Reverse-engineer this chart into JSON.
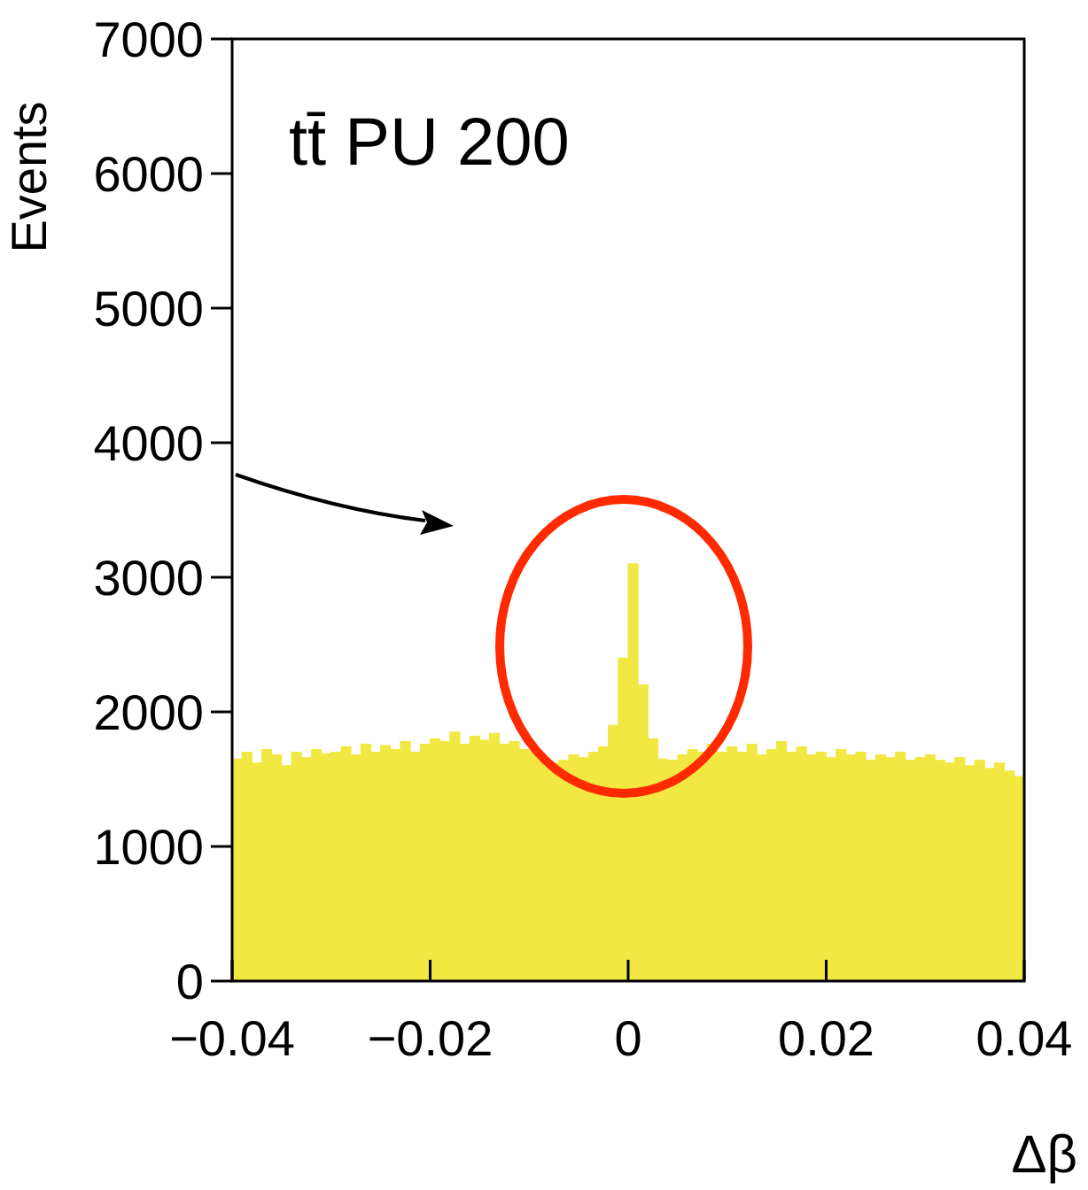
{
  "chart_data": {
    "type": "histogram",
    "title": "tt̄ PU 200",
    "xlabel": "Δβ",
    "ylabel": "Events",
    "bins": [
      -0.04,
      -0.039,
      -0.038,
      -0.037,
      -0.036,
      -0.035,
      -0.034,
      -0.033,
      -0.032,
      -0.031,
      -0.03,
      -0.029,
      -0.028,
      -0.027,
      -0.026,
      -0.025,
      -0.024,
      -0.023,
      -0.022,
      -0.021,
      -0.02,
      -0.019,
      -0.018,
      -0.017,
      -0.016,
      -0.015,
      -0.014,
      -0.013,
      -0.012,
      -0.011,
      -0.01,
      -0.009,
      -0.008,
      -0.007,
      -0.006,
      -0.005,
      -0.004,
      -0.003,
      -0.002,
      -0.001,
      0,
      0.001,
      0.002,
      0.003,
      0.004,
      0.005,
      0.006,
      0.007,
      0.008,
      0.009,
      0.01,
      0.011,
      0.012,
      0.013,
      0.014,
      0.015,
      0.016,
      0.017,
      0.018,
      0.019,
      0.02,
      0.021,
      0.022,
      0.023,
      0.024,
      0.025,
      0.026,
      0.027,
      0.028,
      0.029,
      0.03,
      0.031,
      0.032,
      0.033,
      0.034,
      0.035,
      0.036,
      0.037,
      0.038,
      0.039,
      0.04
    ],
    "values": [
      1650,
      1700,
      1620,
      1720,
      1680,
      1600,
      1700,
      1660,
      1720,
      1690,
      1700,
      1740,
      1680,
      1760,
      1700,
      1750,
      1720,
      1780,
      1700,
      1760,
      1800,
      1780,
      1850,
      1760,
      1820,
      1790,
      1840,
      1760,
      1780,
      1720,
      1700,
      1660,
      1620,
      1640,
      1680,
      1660,
      1700,
      1740,
      1900,
      2400,
      3100,
      2200,
      1800,
      1650,
      1640,
      1680,
      1720,
      1700,
      1760,
      1700,
      1740,
      1700,
      1760,
      1680,
      1720,
      1780,
      1700,
      1740,
      1680,
      1700,
      1660,
      1720,
      1680,
      1700,
      1640,
      1680,
      1660,
      1700,
      1640,
      1660,
      1680,
      1640,
      1620,
      1660,
      1600,
      1640,
      1580,
      1620,
      1560,
      1520
    ],
    "color": "#f2e842",
    "xlim": [
      -0.04,
      0.04
    ],
    "xticks": [
      {
        "value": -0.04,
        "label": "−0.04"
      },
      {
        "value": -0.02,
        "label": "−0.02"
      },
      0,
      0.02,
      0.04
    ],
    "ylim": [
      0,
      7000
    ],
    "yticks": [
      0,
      1000,
      2000,
      3000,
      4000,
      5000,
      6000,
      7000
    ]
  }
}
